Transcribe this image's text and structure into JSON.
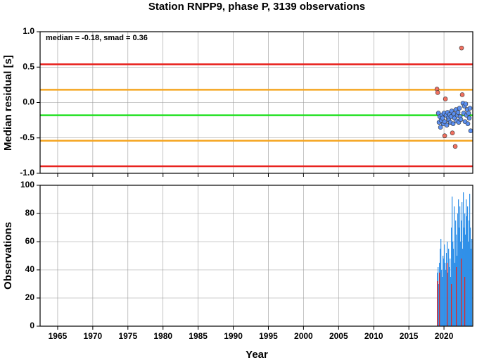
{
  "chart_data": [
    {
      "type": "scatter",
      "title": "Station RNPP9, phase P, 3139 observations",
      "annotation": "median = -0.18, smad = 0.36",
      "y_label": "Median residual [s]",
      "xlim": [
        1962.5,
        2024.1
      ],
      "xticks": [
        1965,
        1970,
        1975,
        1980,
        1985,
        1990,
        1995,
        2000,
        2005,
        2010,
        2015,
        2020
      ],
      "ylim": [
        -1,
        1
      ],
      "yticks": [
        {
          "value": -1,
          "label": "-1.0"
        },
        {
          "value": -0.5,
          "label": "-0.5"
        },
        {
          "value": 0,
          "label": "0.0"
        },
        {
          "value": 0.5,
          "label": "0.5"
        },
        {
          "value": 1,
          "label": "1.0"
        }
      ],
      "grid": true,
      "hlines": [
        {
          "value": 0.54,
          "color": "#e8231f"
        },
        {
          "value": 0.18,
          "color": "#f5a623"
        },
        {
          "value": -0.18,
          "color": "#22e022"
        },
        {
          "value": -0.54,
          "color": "#f5a623"
        },
        {
          "value": -0.9,
          "color": "#e8231f"
        }
      ],
      "series": [
        {
          "color": "#5b8ff0",
          "x": [
            2019.2,
            2019.3,
            2019.4,
            2019.5,
            2019.6,
            2019.7,
            2019.8,
            2019.9,
            2020.0,
            2020.1,
            2020.3,
            2020.4,
            2020.5,
            2020.6,
            2020.7,
            2020.8,
            2020.9,
            2021.0,
            2021.1,
            2021.3,
            2021.4,
            2021.5,
            2021.7,
            2021.8,
            2021.9,
            2022.0,
            2022.1,
            2022.2,
            2022.3,
            2022.4,
            2022.7,
            2022.8,
            2022.9,
            2023.0,
            2023.1,
            2023.2,
            2023.3,
            2023.4,
            2023.5,
            2023.6,
            2023.7,
            2023.8
          ],
          "values": [
            -0.15,
            -0.28,
            -0.2,
            -0.35,
            -0.25,
            -0.18,
            -0.22,
            -0.3,
            -0.15,
            -0.27,
            -0.18,
            -0.32,
            -0.14,
            -0.22,
            -0.25,
            -0.17,
            -0.28,
            -0.2,
            -0.12,
            -0.3,
            -0.16,
            -0.22,
            -0.1,
            -0.26,
            -0.18,
            -0.14,
            -0.28,
            -0.08,
            -0.2,
            -0.24,
            -0.01,
            -0.15,
            -0.05,
            -0.27,
            -0.02,
            -0.18,
            -0.1,
            -0.3,
            -0.15,
            -0.22,
            -0.08,
            -0.4
          ]
        },
        {
          "color": "#f07060",
          "x": [
            2019.0,
            2019.1,
            2020.2,
            2020.1,
            2021.2,
            2021.6,
            2022.5,
            2022.6
          ],
          "values": [
            0.19,
            0.14,
            0.05,
            -0.47,
            -0.43,
            -0.62,
            0.77,
            0.11
          ]
        }
      ]
    },
    {
      "type": "bar",
      "x_label": "Year",
      "y_label": "Observations",
      "xlim": [
        1962.5,
        2024.1
      ],
      "xticks": [
        1965,
        1970,
        1975,
        1980,
        1985,
        1990,
        1995,
        2000,
        2005,
        2010,
        2015,
        2020
      ],
      "ylim": [
        0,
        100
      ],
      "yticks": [
        0,
        20,
        40,
        60,
        80,
        100
      ],
      "grid": true,
      "series": [
        {
          "color": "#2f8fe8",
          "x": [
            2019.0,
            2019.1,
            2019.2,
            2019.3,
            2019.4,
            2019.5,
            2019.6,
            2019.7,
            2019.8,
            2019.9,
            2020.0,
            2020.1,
            2020.2,
            2020.3,
            2020.4,
            2020.5,
            2020.6,
            2020.7,
            2020.8,
            2020.9,
            2021.0,
            2021.1,
            2021.2,
            2021.3,
            2021.4,
            2021.5,
            2021.6,
            2021.7,
            2021.8,
            2021.9,
            2022.0,
            2022.1,
            2022.2,
            2022.3,
            2022.4,
            2022.5,
            2022.6,
            2022.7,
            2022.8,
            2022.9,
            2023.0,
            2023.1,
            2023.2,
            2023.3,
            2023.4,
            2023.5,
            2023.6,
            2023.7,
            2023.8,
            2023.9
          ],
          "values": [
            38,
            42,
            30,
            45,
            55,
            62,
            40,
            35,
            50,
            48,
            58,
            45,
            40,
            52,
            60,
            38,
            55,
            42,
            48,
            35,
            70,
            92,
            60,
            55,
            85,
            45,
            75,
            65,
            50,
            80,
            90,
            70,
            85,
            60,
            75,
            88,
            55,
            95,
            70,
            80,
            65,
            90,
            78,
            85,
            60,
            75,
            94,
            70,
            55,
            62
          ]
        },
        {
          "color": "#e8231f",
          "x": [
            2019.0,
            2019.3,
            2020.4,
            2021.0,
            2021.7,
            2022.4,
            2022.9
          ],
          "values": [
            32,
            38,
            45,
            30,
            42,
            48,
            35
          ]
        }
      ]
    }
  ]
}
